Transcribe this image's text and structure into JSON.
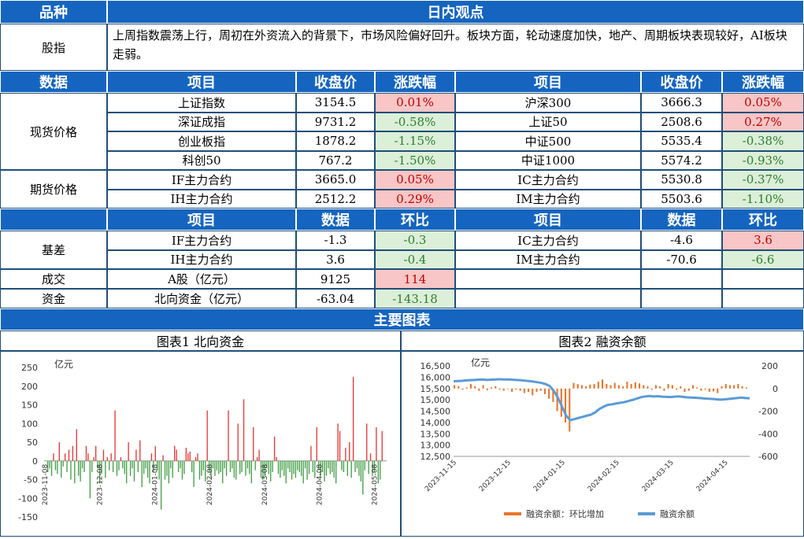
{
  "header": {
    "col1": "品种",
    "col2": "日内观点"
  },
  "summary": {
    "label": "股指",
    "text": "上周指数震荡上行，周初在外资流入的背景下，市场风险偏好回升。板块方面，轮动速度加快，地产、周期板块表现较好，AI板块走弱。"
  },
  "table1_headers": {
    "c1": "数据",
    "c2": "项目",
    "c3": "收盘价",
    "c4": "涨跌幅",
    "c5": "项目",
    "c6": "收盘价",
    "c7": "涨跌幅"
  },
  "spot": {
    "label": "现货价格",
    "rows": [
      {
        "l_name": "上证指数",
        "l_close": "3154.5",
        "l_chg": "0.01%",
        "l_dir": "up",
        "r_name": "沪深300",
        "r_close": "3666.3",
        "r_chg": "0.05%",
        "r_dir": "up"
      },
      {
        "l_name": "深证成指",
        "l_close": "9731.2",
        "l_chg": "-0.58%",
        "l_dir": "down",
        "r_name": "上证50",
        "r_close": "2508.6",
        "r_chg": "0.27%",
        "r_dir": "up"
      },
      {
        "l_name": "创业板指",
        "l_close": "1878.2",
        "l_chg": "-1.15%",
        "l_dir": "down",
        "r_name": "中证500",
        "r_close": "5535.4",
        "r_chg": "-0.38%",
        "r_dir": "down"
      },
      {
        "l_name": "科创50",
        "l_close": "767.2",
        "l_chg": "-1.50%",
        "l_dir": "down",
        "r_name": "中证1000",
        "r_close": "5574.2",
        "r_chg": "-0.93%",
        "r_dir": "down"
      }
    ]
  },
  "futures": {
    "label": "期货价格",
    "rows": [
      {
        "l_name": "IF主力合约",
        "l_close": "3665.0",
        "l_chg": "0.05%",
        "l_dir": "up",
        "r_name": "IC主力合约",
        "r_close": "5530.8",
        "r_chg": "-0.37%",
        "r_dir": "down"
      },
      {
        "l_name": "IH主力合约",
        "l_close": "2512.2",
        "l_chg": "0.29%",
        "l_dir": "up",
        "r_name": "IM主力合约",
        "r_close": "5503.6",
        "r_chg": "-1.10%",
        "r_dir": "down"
      }
    ]
  },
  "table2_headers": {
    "c2": "项目",
    "c3": "数据",
    "c4": "环比",
    "c5": "项目",
    "c6": "数据",
    "c7": "环比"
  },
  "basis": {
    "label": "基差",
    "rows": [
      {
        "l_name": "IF主力合约",
        "l_val": "-1.3",
        "l_chg": "-0.3",
        "l_dir": "down",
        "r_name": "IC主力合约",
        "r_val": "-4.6",
        "r_chg": "3.6",
        "r_dir": "up"
      },
      {
        "l_name": "IH主力合约",
        "l_val": "3.6",
        "l_chg": "-0.4",
        "l_dir": "down",
        "r_name": "IM主力合约",
        "r_val": "-70.6",
        "r_chg": "-6.6",
        "r_dir": "down"
      }
    ]
  },
  "volume": {
    "label": "成交",
    "name": "A股（亿元）",
    "val": "9125",
    "chg": "114",
    "dir": "up"
  },
  "capital": {
    "label": "资金",
    "name": "北向资金（亿元）",
    "val": "-63.04",
    "chg": "-143.18",
    "dir": "down"
  },
  "charts_header": "主要图表",
  "chart1_title": "图表1 北向资金",
  "chart2_title": "图表2 融资余额",
  "colors": {
    "header_blue": "#1565c0",
    "up_red": "#c00000",
    "down_green": "#2e7d32",
    "bar_orange": "#e8762c",
    "line_blue": "#5b9bd5"
  },
  "chart_data": [
    {
      "type": "bar",
      "ylabel": "亿元",
      "ylim": [
        -150,
        250
      ],
      "yticks": [
        250,
        200,
        150,
        100,
        50,
        0,
        -50,
        -100,
        -150
      ],
      "xticks": [
        "2023-11-08",
        "2023-12-08",
        "2024-01-08",
        "2024-02-08",
        "2024-03-08",
        "2024-04-08",
        "2024-05-08"
      ],
      "grid": false,
      "positive_color": "#e53935",
      "negative_color": "#43a047",
      "values": [
        -30,
        -20,
        -40,
        20,
        -25,
        -35,
        50,
        -45,
        -15,
        20,
        -30,
        30,
        -50,
        40,
        -60,
        85,
        -40,
        -55,
        -20,
        -30,
        40,
        20,
        -100,
        -30,
        10,
        40,
        -20,
        -60,
        -35,
        30,
        -45,
        10,
        -25,
        20,
        -30,
        135,
        -40,
        -25,
        10,
        -20,
        -35,
        -60,
        50,
        -40,
        -20,
        -55,
        30,
        -30,
        55,
        -70,
        -35,
        -20,
        -45,
        -60,
        20,
        -30,
        40,
        -25,
        -50,
        -130,
        15,
        -50,
        -40,
        -60,
        -20,
        -45,
        40,
        30,
        -30,
        -20,
        -50,
        -35,
        35,
        20,
        25,
        -30,
        -70,
        10,
        20,
        -50,
        -40,
        -25,
        -55,
        135,
        -30,
        -45,
        -20,
        -40,
        -25,
        -35,
        -30,
        -60,
        -20,
        -40,
        135,
        -30,
        -20,
        -45,
        -50,
        100,
        -35,
        -30,
        165,
        -40,
        -20,
        -35,
        -60,
        90,
        -25,
        10,
        30,
        -45,
        -50,
        -40,
        -20,
        -35,
        -55,
        -30,
        65,
        10,
        -35,
        -45,
        -25,
        -40,
        -60,
        -20,
        -30,
        -50,
        -35,
        -45,
        -25,
        -30,
        -40,
        -60,
        -20,
        -50,
        -35,
        40,
        -30,
        -45,
        90,
        -25,
        -40,
        -30,
        -55,
        -40,
        -20,
        -35,
        -30,
        -45,
        -60,
        100,
        80,
        -25,
        -30,
        35,
        -40,
        50,
        -45,
        225,
        -30,
        -20,
        -40,
        -55,
        -90,
        -25,
        100,
        -35,
        20,
        -40,
        -30,
        90,
        -60,
        -50,
        80
      ]
    },
    {
      "type": "line",
      "ylabel": "亿元",
      "left_ylim": [
        12500,
        16500
      ],
      "left_yticks": [
        16500,
        16000,
        15500,
        15000,
        14500,
        14000,
        13500,
        13000,
        12500
      ],
      "right_ylim": [
        -600,
        200
      ],
      "right_yticks": [
        200,
        0,
        -200,
        -400,
        -600
      ],
      "xticks": [
        "2023-11-15",
        "2023-12-15",
        "2024-01-15",
        "2024-02-15",
        "2024-03-15",
        "2024-04-15"
      ],
      "legend": [
        "融资余额：环比增加",
        "融资余额"
      ],
      "legend_position": "bottom",
      "bar_color": "#e8762c",
      "line_color": "#5b9bd5",
      "series": [
        {
          "name": "融资余额",
          "axis": "left",
          "values": [
            15820,
            15830,
            15840,
            15860,
            15870,
            15880,
            15890,
            15900,
            15880,
            15890,
            15900,
            15910,
            15900,
            15900,
            15890,
            15880,
            15870,
            15850,
            15830,
            15810,
            15780,
            15750,
            15700,
            15620,
            15400,
            15100,
            14700,
            14300,
            14100,
            14150,
            14200,
            14250,
            14300,
            14350,
            14450,
            14600,
            14700,
            14780,
            14800,
            14840,
            14870,
            14900,
            14950,
            15000,
            15060,
            15120,
            15150,
            15170,
            15150,
            15160,
            15140,
            15130,
            15120,
            15140,
            15150,
            15130,
            15110,
            15100,
            15090,
            15080,
            15060,
            15050,
            15040,
            15020,
            15010,
            15020,
            15040,
            15060,
            15080,
            15100,
            15080,
            15070
          ]
        },
        {
          "name": "融资余额：环比增加",
          "axis": "right",
          "values": [
            30,
            20,
            -10,
            10,
            40,
            20,
            -20,
            30,
            -15,
            10,
            20,
            -10,
            -20,
            -5,
            -30,
            -10,
            -20,
            -40,
            -30,
            -60,
            -30,
            -20,
            -50,
            -90,
            -120,
            -200,
            -250,
            -300,
            -380,
            50,
            40,
            30,
            20,
            35,
            40,
            60,
            80,
            40,
            30,
            50,
            30,
            20,
            60,
            40,
            55,
            45,
            30,
            20,
            -10,
            30,
            20,
            -20,
            40,
            30,
            -10,
            20,
            -30,
            -20,
            30,
            10,
            -20,
            -10,
            -30,
            -25,
            -40,
            20,
            40,
            30,
            30,
            40,
            20,
            10
          ]
        }
      ]
    }
  ]
}
